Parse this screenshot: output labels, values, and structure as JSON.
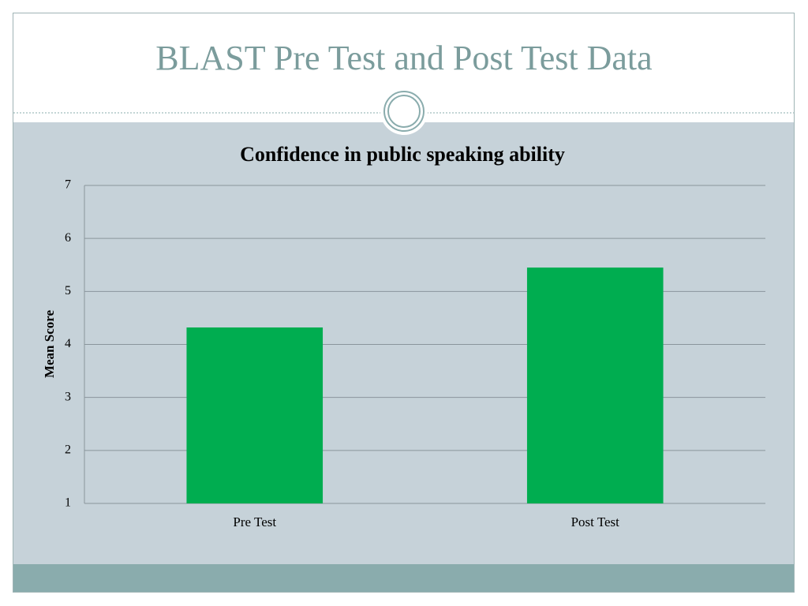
{
  "slide": {
    "title": "BLAST Pre Test and Post Test Data"
  },
  "chart_data": {
    "type": "bar",
    "title": "Confidence in public speaking ability",
    "y_label": "Mean Score",
    "categories": [
      "Pre Test",
      "Post Test"
    ],
    "values": [
      4.32,
      5.45
    ],
    "color": "#00ad50",
    "ylim": [
      1,
      7
    ],
    "yticks": [
      1,
      2,
      3,
      4,
      5,
      6,
      7
    ],
    "grid": true
  }
}
